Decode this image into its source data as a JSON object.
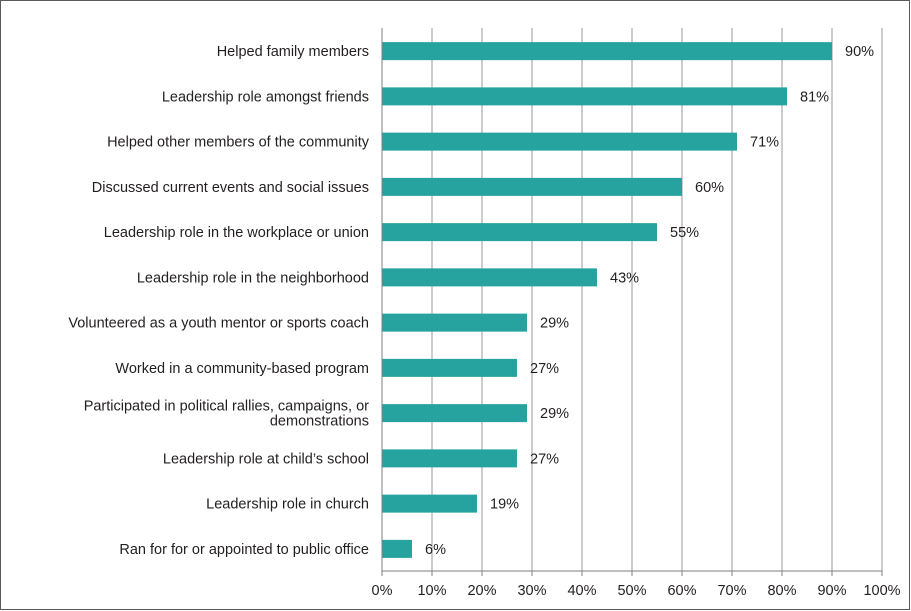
{
  "chart_data": {
    "type": "bar",
    "orientation": "horizontal",
    "categories": [
      [
        "Helped family members"
      ],
      [
        "Leadership role amongst friends"
      ],
      [
        "Helped other members of the community"
      ],
      [
        "Discussed current events and social issues"
      ],
      [
        "Leadership role in the workplace or union"
      ],
      [
        "Leadership role in the neighborhood"
      ],
      [
        "Volunteered as a youth mentor or sports coach"
      ],
      [
        "Worked  in a community-based program"
      ],
      [
        "Participated in political rallies, campaigns, or",
        "demonstrations"
      ],
      [
        "Leadership role at child’s school"
      ],
      [
        "Leadership role in church"
      ],
      [
        "Ran for for or appointed to public office"
      ]
    ],
    "values": [
      90,
      81,
      71,
      60,
      55,
      43,
      29,
      27,
      29,
      27,
      19,
      6
    ],
    "value_labels": [
      "90%",
      "81%",
      "71%",
      "60%",
      "55%",
      "43%",
      "29%",
      "27%",
      "29%",
      "27%",
      "19%",
      "6%"
    ],
    "x_ticks": [
      0,
      10,
      20,
      30,
      40,
      50,
      60,
      70,
      80,
      90,
      100
    ],
    "x_tick_labels": [
      "0%",
      "10%",
      "20%",
      "30%",
      "40%",
      "50%",
      "60%",
      "70%",
      "80%",
      "90%",
      "100%"
    ],
    "xlim": [
      0,
      100
    ],
    "grid": "vertical",
    "bar_color": "#26a39f",
    "grid_color": "#9a9a9a",
    "axis_color": "#7f7f7f",
    "title": "",
    "xlabel": "",
    "ylabel": ""
  }
}
